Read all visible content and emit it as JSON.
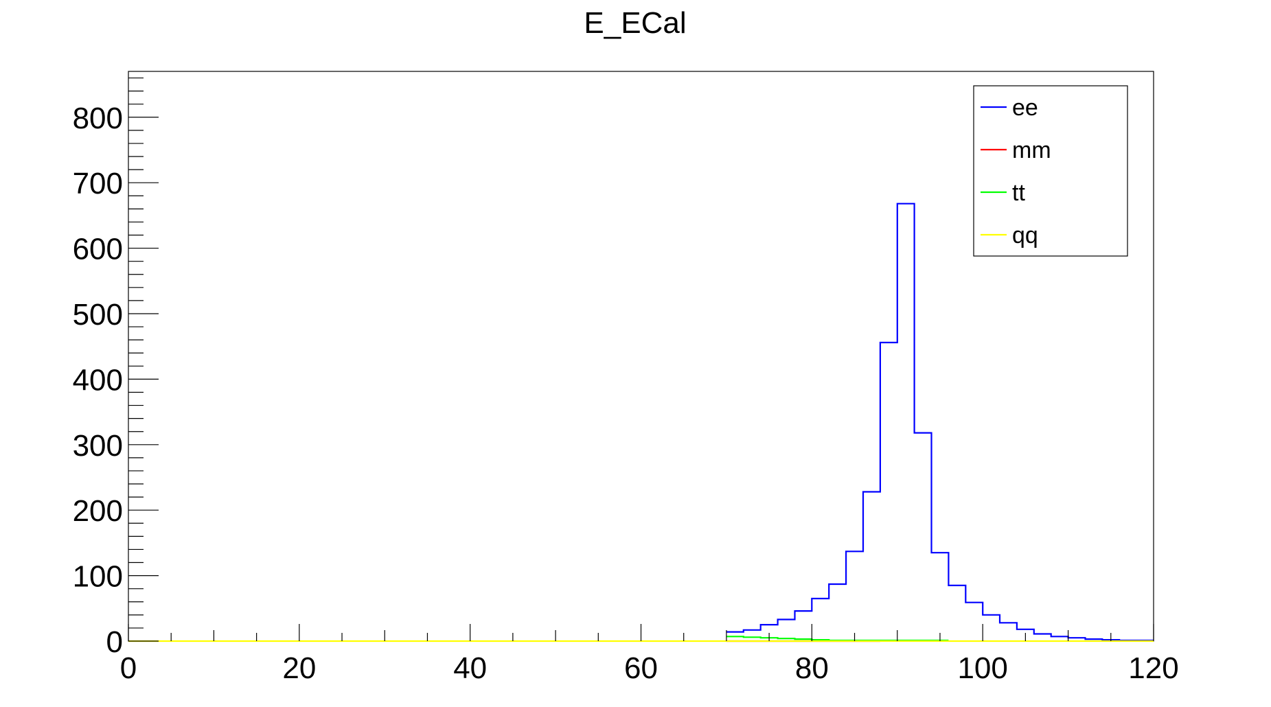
{
  "chart_data": {
    "type": "line",
    "title": "E_ECal",
    "xlabel": "",
    "ylabel": "",
    "xlim": [
      0,
      120
    ],
    "ylim": [
      0,
      870
    ],
    "bin_width": 2,
    "x_major_ticks": [
      0,
      20,
      40,
      60,
      80,
      100,
      120
    ],
    "y_major_ticks": [
      0,
      100,
      200,
      300,
      400,
      500,
      600,
      700,
      800
    ],
    "x_tick_labels": [
      "0",
      "20",
      "40",
      "60",
      "80",
      "100",
      "120"
    ],
    "y_tick_labels": [
      "0",
      "100",
      "200",
      "300",
      "400",
      "500",
      "600",
      "700",
      "800"
    ],
    "grid": false,
    "legend_position": "top-right",
    "series": [
      {
        "name": "ee",
        "color": "#0000ff",
        "bin_edges": [
          70,
          72,
          74,
          76,
          78,
          80,
          82,
          84,
          86,
          88,
          90,
          92,
          94,
          96,
          98,
          100,
          102,
          104,
          106,
          108,
          110,
          112,
          114,
          116,
          118,
          120
        ],
        "values": [
          14,
          17,
          25,
          33,
          46,
          65,
          87,
          137,
          228,
          456,
          668,
          318,
          135,
          85,
          59,
          40,
          28,
          18,
          11,
          7,
          5,
          3,
          2,
          1,
          1
        ]
      },
      {
        "name": "mm",
        "color": "#ff0000",
        "bin_edges": [
          70,
          72,
          74,
          76,
          78,
          80,
          82,
          84,
          86,
          88
        ],
        "values": [
          0,
          0,
          0,
          0,
          0,
          0,
          0,
          0,
          0
        ]
      },
      {
        "name": "tt",
        "color": "#00ff00",
        "bin_edges": [
          70,
          72,
          74,
          76,
          78,
          80,
          82,
          84,
          86,
          88,
          90,
          92,
          94,
          96
        ],
        "values": [
          7,
          6,
          5,
          4,
          3,
          2,
          1,
          1,
          1,
          1,
          1,
          1,
          1
        ]
      },
      {
        "name": "qq",
        "color": "#ffff00",
        "bin_edges": [
          0,
          120
        ],
        "values": [
          0
        ]
      }
    ]
  }
}
